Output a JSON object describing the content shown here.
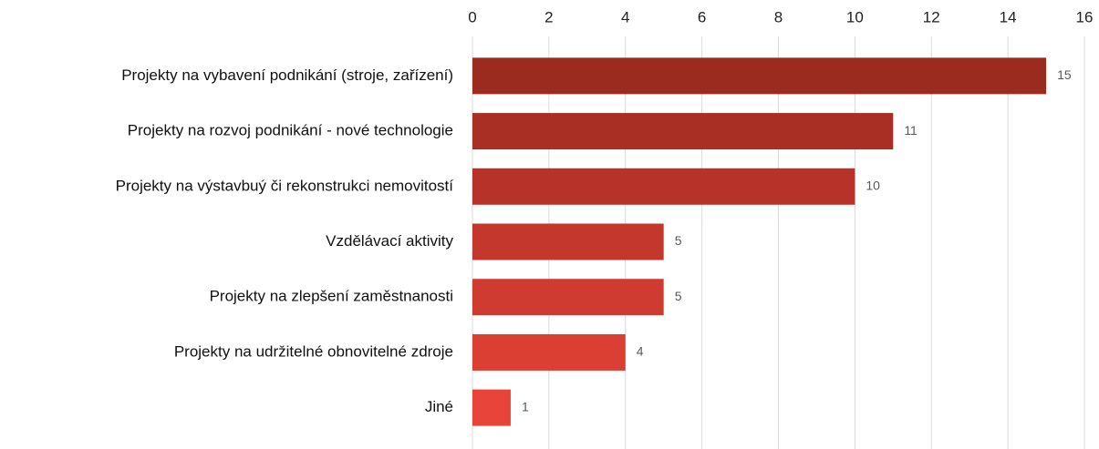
{
  "chart_data": {
    "type": "barh",
    "categories": [
      "Projekty na vybavení podnikání (stroje, zařízení)",
      "Projekty na rozvoj podnikání - nové technologie",
      "Projekty na výstavbuý či rekonstrukci nemovitostí",
      "Vzdělávací aktivity",
      "Projekty na zlepšení zaměstnanosti",
      "Projekty na udržitelné obnovitelné zdroje",
      "Jiné"
    ],
    "values": [
      15,
      11,
      10,
      5,
      5,
      4,
      1
    ],
    "colors": [
      "#9b2a1f",
      "#a92f25",
      "#b7332a",
      "#c3372d",
      "#cf3b30",
      "#db3f34",
      "#e8443a"
    ],
    "xlim": [
      0,
      16
    ],
    "xticks": [
      0,
      2,
      4,
      6,
      8,
      10,
      12,
      14,
      16
    ],
    "grid": true
  }
}
